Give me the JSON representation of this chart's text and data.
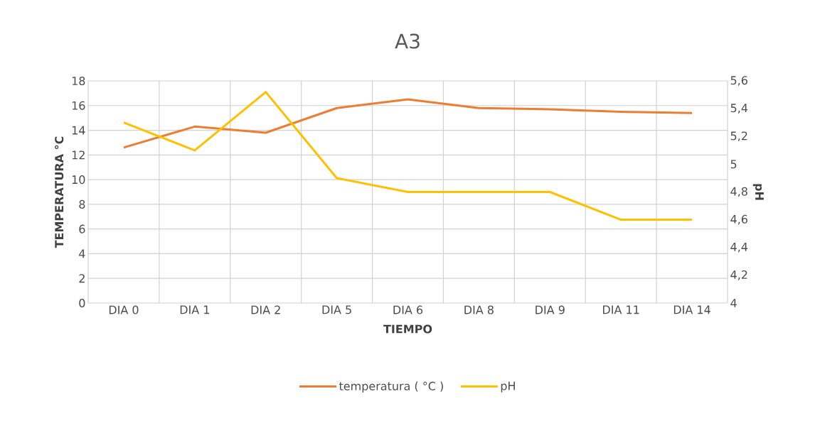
{
  "chart_data": {
    "type": "line",
    "title": "A3",
    "xlabel": "TIEMPO",
    "ylabel": "TEMPERATURA °C",
    "y2label": "pH",
    "categories": [
      "DIA 0",
      "DIA 1",
      "DIA 2",
      "DIA 5",
      "DIA 6",
      "DIA 8",
      "DIA 9",
      "DIA 11",
      "DIA 14"
    ],
    "series": [
      {
        "name": "temperatura ( °C )",
        "color": "#ed7d31",
        "values": [
          12.6,
          14.3,
          13.8,
          15.8,
          16.5,
          15.8,
          15.7,
          15.5,
          15.4
        ]
      },
      {
        "name": "pH",
        "color": "#ffc000",
        "axis": "y2",
        "values": [
          5.3,
          5.1,
          5.52,
          4.9,
          4.8,
          4.8,
          4.8,
          4.6,
          4.6
        ]
      }
    ],
    "ylim": [
      0,
      18
    ],
    "yticks": [
      0,
      2,
      4,
      6,
      8,
      10,
      12,
      14,
      16,
      18
    ],
    "y2lim": [
      4,
      5.6
    ],
    "y2ticks": [
      4,
      {
        "value": 4.2,
        "label": "4,2"
      },
      {
        "value": 4.4,
        "label": "4,4"
      },
      {
        "value": 4.6,
        "label": "4,6"
      },
      {
        "value": 4.8,
        "label": "4,8"
      },
      5,
      {
        "value": 5.2,
        "label": "5,2"
      },
      {
        "value": 5.4,
        "label": "5,4"
      },
      {
        "value": 5.6,
        "label": "5,6"
      }
    ],
    "grid": true,
    "legend": "bottom",
    "marker": "none",
    "line_style": "solid"
  }
}
